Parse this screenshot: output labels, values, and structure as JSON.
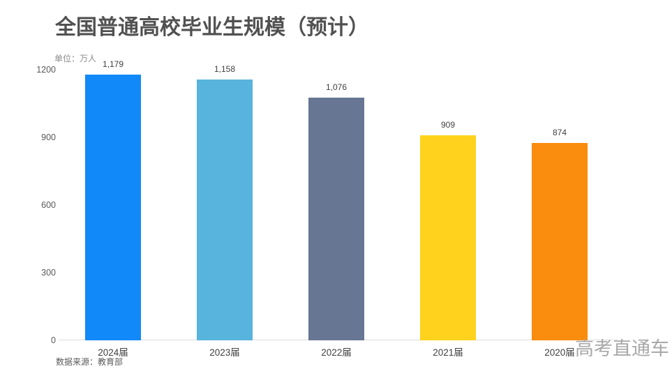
{
  "chart_data": {
    "type": "bar",
    "title": "全国普通高校毕业生规模（预计）",
    "unit_label": "单位：万人",
    "source": "数据来源：教育部",
    "watermark": "高考直通车",
    "categories": [
      "2024届",
      "2023届",
      "2022届",
      "2021届",
      "2020届"
    ],
    "values": [
      1179,
      1158,
      1076,
      909,
      874
    ],
    "value_labels": [
      "1,179",
      "1,158",
      "1,076",
      "909",
      "874"
    ],
    "bar_colors": [
      "#1289F8",
      "#58B4DC",
      "#667693",
      "#FFD21D",
      "#FA8C0E"
    ],
    "y_ticks": [
      0,
      300,
      600,
      900,
      1200
    ],
    "ylim": [
      0,
      1200
    ],
    "xlabel": "",
    "ylabel": "万人",
    "grid": false,
    "legend": "none",
    "background_color": "#FFFFFF",
    "title_color": "#515151",
    "text_color": "#404040",
    "axis_line_color": "#DCDCDC",
    "watermark_color": "#A8A8A8"
  }
}
